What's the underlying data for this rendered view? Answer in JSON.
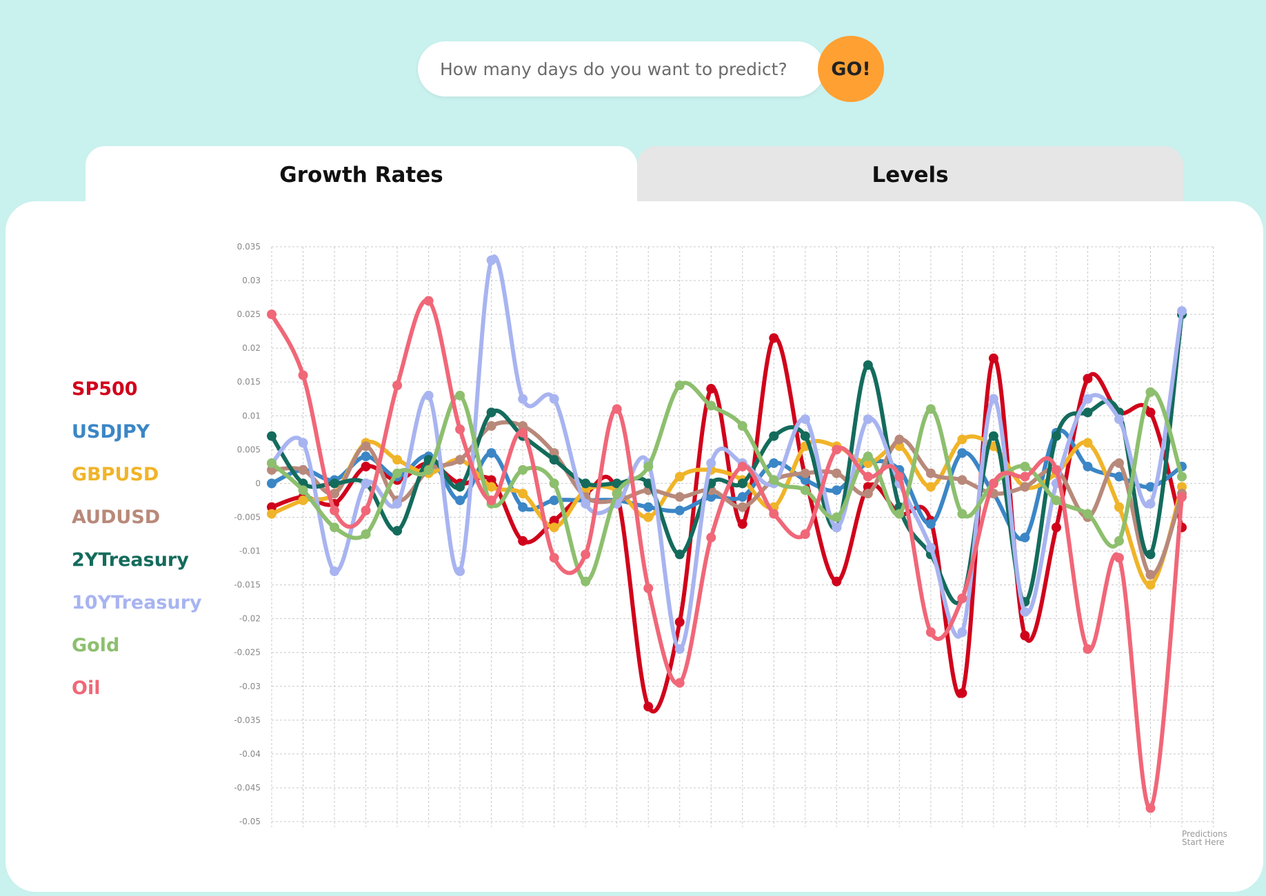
{
  "search": {
    "placeholder": "How many days do you want to predict?",
    "value": "",
    "go_label": "GO!"
  },
  "tabs": [
    {
      "label": "Growth Rates",
      "active": true
    },
    {
      "label": "Levels",
      "active": false
    }
  ],
  "colors": {
    "background": "#c9f1ee",
    "go_button": "#ffa033",
    "inactive_tab": "#e6e6e6"
  },
  "chart_data": {
    "type": "line",
    "title": "",
    "xlabel": "",
    "ylabel": "",
    "ylim": [
      -0.05,
      0.035
    ],
    "grid": true,
    "legend_position": "left",
    "y_ticks": [
      "0.035",
      "0.03",
      "0.025",
      "0.02",
      "0.015",
      "0.01",
      "0.005",
      "0",
      "-0.005",
      "-0.01",
      "-0.015",
      "-0.02",
      "-0.025",
      "-0.03",
      "-0.035",
      "-0.04",
      "-0.045",
      "-0.05"
    ],
    "annotation": {
      "line1": "Predictions",
      "line2": "Start Here"
    },
    "x": [
      1,
      2,
      3,
      4,
      5,
      6,
      7,
      8,
      9,
      10,
      11,
      12,
      13,
      14,
      15,
      16,
      17,
      18,
      19,
      20,
      21,
      22,
      23,
      24,
      25,
      26,
      27,
      28,
      29,
      30
    ],
    "series": [
      {
        "name": "SP500",
        "color": "#d0021b",
        "values": [
          -0.0035,
          -0.002,
          -0.003,
          0.0025,
          0.0005,
          0.003,
          0,
          0.0005,
          -0.0085,
          -0.0055,
          -0.0015,
          -0.0015,
          -0.033,
          -0.0205,
          0.014,
          -0.006,
          0.0215,
          0.001,
          -0.0145,
          -0.0005,
          -0.0045,
          -0.0055,
          -0.031,
          0.0185,
          -0.0225,
          -0.0065,
          0.0155,
          0.0105,
          0.0105,
          -0.0065
        ]
      },
      {
        "name": "USDJPY",
        "color": "#3b86c6",
        "values": [
          0,
          0.002,
          0.0005,
          0.004,
          0.001,
          0.004,
          -0.0025,
          0.0045,
          -0.0035,
          -0.0025,
          -0.0025,
          -0.0025,
          -0.0035,
          -0.004,
          -0.002,
          -0.002,
          0.003,
          0.0005,
          -0.001,
          0.003,
          0.002,
          -0.006,
          0.0045,
          -0.0015,
          -0.008,
          0.0075,
          0.0025,
          0.001,
          -0.0005,
          0.0025
        ]
      },
      {
        "name": "GBPUSD",
        "color": "#f0b429",
        "values": [
          -0.0045,
          -0.0025,
          -0.0015,
          0.006,
          0.0035,
          0.0015,
          0.0035,
          -0.0005,
          -0.0015,
          -0.0065,
          -0.001,
          -0.001,
          -0.005,
          0.001,
          0.002,
          0.0005,
          -0.0035,
          0.0055,
          0.0055,
          0.003,
          0.0055,
          -0.0005,
          0.0065,
          0.0055,
          -0.0005,
          0.0015,
          0.006,
          -0.0035,
          -0.015,
          -0.0005
        ]
      },
      {
        "name": "AUDUSD",
        "color": "#b8897a",
        "values": [
          0.002,
          0.002,
          -0.0015,
          0.0055,
          -0.0025,
          0.002,
          0.0035,
          0.0085,
          0.0085,
          0.0045,
          -0.002,
          -0.0025,
          -0.001,
          -0.002,
          -0.001,
          -0.0035,
          0.0005,
          0.0015,
          0.0015,
          -0.0015,
          0.0065,
          0.0015,
          0.0005,
          -0.0015,
          -0.0005,
          0.002,
          -0.005,
          0.003,
          -0.0135,
          -0.0015
        ]
      },
      {
        "name": "2YTreasury",
        "color": "#146b5c",
        "values": [
          0.007,
          0,
          0,
          0,
          -0.007,
          0.0035,
          -0.0005,
          0.0105,
          0.007,
          0.0035,
          0,
          0,
          0,
          -0.0105,
          0,
          0,
          0.007,
          0.007,
          -0.0065,
          0.0175,
          -0.0035,
          -0.0105,
          -0.017,
          0.007,
          -0.0175,
          0.007,
          0.0105,
          0.0105,
          -0.0105,
          0.025
        ]
      },
      {
        "name": "10YTreasury",
        "color": "#a8b4f0",
        "values": [
          0.003,
          0.006,
          -0.013,
          0,
          -0.003,
          0.013,
          -0.013,
          0.033,
          0.0125,
          0.0125,
          -0.003,
          -0.003,
          0.003,
          -0.0245,
          0.003,
          0.003,
          0,
          0.0095,
          -0.0065,
          0.0095,
          0,
          -0.0095,
          -0.022,
          0.0125,
          -0.019,
          0,
          0.0125,
          0.0095,
          -0.003,
          0.0255
        ]
      },
      {
        "name": "Gold",
        "color": "#8dbf6e",
        "values": [
          0.003,
          -0.001,
          -0.0065,
          -0.0075,
          0.0015,
          0.002,
          0.013,
          -0.003,
          0.002,
          0,
          -0.0145,
          -0.0015,
          0.0025,
          0.0145,
          0.0115,
          0.0085,
          0.0005,
          -0.001,
          -0.005,
          0.004,
          -0.0045,
          0.011,
          -0.0045,
          0,
          0.0025,
          -0.0025,
          -0.0045,
          -0.0085,
          0.0135,
          0.001
        ]
      },
      {
        "name": "Oil",
        "color": "#f06778",
        "values": [
          0.025,
          0.016,
          -0.004,
          -0.004,
          0.0145,
          0.027,
          0.008,
          -0.0025,
          0.0075,
          -0.011,
          -0.0105,
          0.011,
          -0.0155,
          -0.0295,
          -0.008,
          0.0025,
          -0.0045,
          -0.0075,
          0.005,
          0.001,
          0.001,
          -0.022,
          -0.017,
          0,
          0.001,
          0.002,
          -0.0245,
          -0.011,
          -0.048,
          -0.002
        ]
      }
    ]
  }
}
